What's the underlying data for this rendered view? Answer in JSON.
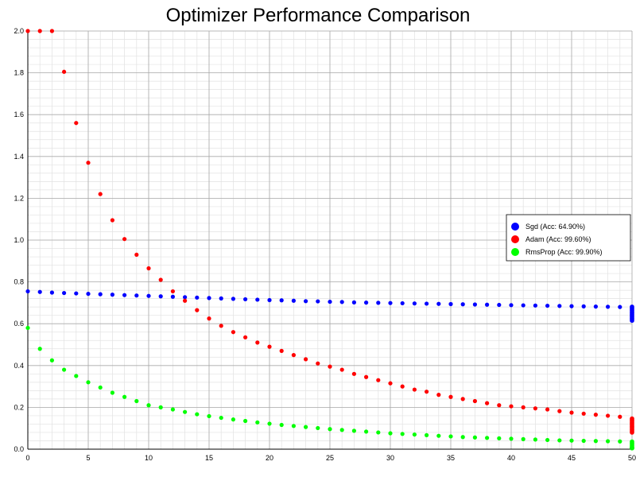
{
  "chart_data": {
    "type": "scatter",
    "title": "Optimizer Performance Comparison",
    "xlabel": "",
    "ylabel": "",
    "xlim": [
      0,
      50
    ],
    "ylim": [
      0,
      2.0
    ],
    "x_ticks": [
      0,
      5,
      10,
      15,
      20,
      25,
      30,
      35,
      40,
      45,
      50
    ],
    "y_ticks": [
      0.0,
      0.2,
      0.4,
      0.6,
      0.8,
      1.0,
      1.2,
      1.4,
      1.6,
      1.8,
      2.0
    ],
    "y_tick_labels": [
      "0.0",
      "0.2",
      "0.4",
      "0.6",
      "0.8",
      "1.0",
      "1.2",
      "1.4",
      "1.6",
      "1.8",
      "2.0"
    ],
    "grid": true,
    "legend_position": "right",
    "x": [
      0,
      1,
      2,
      3,
      4,
      5,
      6,
      7,
      8,
      9,
      10,
      11,
      12,
      13,
      14,
      15,
      16,
      17,
      18,
      19,
      20,
      21,
      22,
      23,
      24,
      25,
      26,
      27,
      28,
      29,
      30,
      31,
      32,
      33,
      34,
      35,
      36,
      37,
      38,
      39,
      40,
      41,
      42,
      43,
      44,
      45,
      46,
      47,
      48,
      49,
      50
    ],
    "series": [
      {
        "name": "Sgd (Acc: 64.90%)",
        "color": "#0000ff",
        "values": [
          0.755,
          0.752,
          0.749,
          0.747,
          0.745,
          0.743,
          0.741,
          0.739,
          0.737,
          0.735,
          0.733,
          0.731,
          0.729,
          0.727,
          0.725,
          0.723,
          0.721,
          0.719,
          0.717,
          0.715,
          0.713,
          0.712,
          0.71,
          0.708,
          0.707,
          0.705,
          0.704,
          0.702,
          0.701,
          0.7,
          0.699,
          0.698,
          0.697,
          0.696,
          0.695,
          0.694,
          0.693,
          0.692,
          0.691,
          0.69,
          0.689,
          0.688,
          0.687,
          0.686,
          0.685,
          0.684,
          0.683,
          0.682,
          0.681,
          0.68,
          0.675
        ]
      },
      {
        "name": "Adam (Acc: 99.60%)",
        "color": "#ff0000",
        "values": [
          2.0,
          2.0,
          2.0,
          1.805,
          1.56,
          1.37,
          1.22,
          1.095,
          1.005,
          0.93,
          0.865,
          0.81,
          0.755,
          0.71,
          0.665,
          0.625,
          0.59,
          0.56,
          0.535,
          0.51,
          0.49,
          0.47,
          0.45,
          0.43,
          0.41,
          0.395,
          0.38,
          0.36,
          0.345,
          0.33,
          0.315,
          0.3,
          0.285,
          0.275,
          0.26,
          0.25,
          0.24,
          0.23,
          0.22,
          0.21,
          0.205,
          0.2,
          0.195,
          0.19,
          0.182,
          0.175,
          0.17,
          0.165,
          0.16,
          0.155,
          0.14
        ]
      },
      {
        "name": "RmsProp (Acc: 99.90%)",
        "color": "#00ff00",
        "values": [
          0.58,
          0.48,
          0.425,
          0.38,
          0.35,
          0.32,
          0.295,
          0.27,
          0.25,
          0.23,
          0.21,
          0.2,
          0.19,
          0.178,
          0.167,
          0.158,
          0.15,
          0.142,
          0.135,
          0.128,
          0.122,
          0.116,
          0.111,
          0.106,
          0.101,
          0.096,
          0.092,
          0.088,
          0.084,
          0.08,
          0.076,
          0.073,
          0.07,
          0.067,
          0.064,
          0.061,
          0.058,
          0.056,
          0.054,
          0.052,
          0.05,
          0.048,
          0.046,
          0.044,
          0.042,
          0.041,
          0.04,
          0.039,
          0.038,
          0.037,
          0.03
        ]
      }
    ]
  }
}
